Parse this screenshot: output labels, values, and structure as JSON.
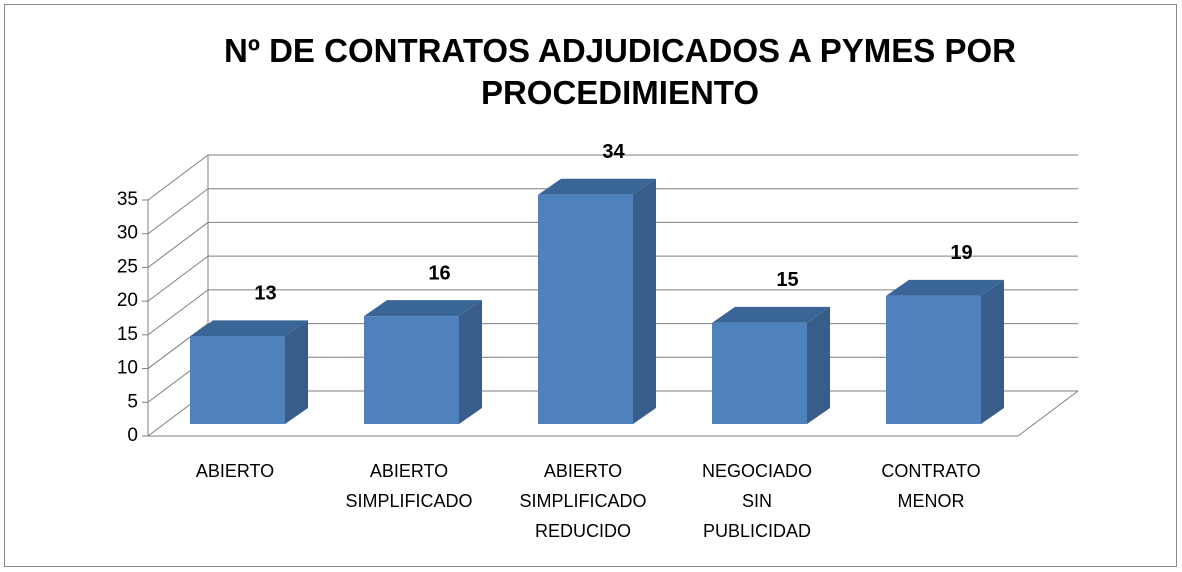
{
  "chart_data": {
    "type": "bar3d",
    "title": "Nº DE CONTRATOS ADJUDICADOS A PYMES POR PROCEDIMIENTO",
    "categories": [
      "ABIERTO",
      "ABIERTO SIMPLIFICADO",
      "ABIERTO SIMPLIFICADO REDUCIDO",
      "NEGOCIADO SIN PUBLICIDAD",
      "CONTRATO MENOR"
    ],
    "values": [
      13,
      16,
      34,
      15,
      19
    ],
    "color": "#4f81bd",
    "ylim": [
      0,
      35
    ],
    "yticks": [
      0,
      5,
      10,
      15,
      20,
      25,
      30,
      35
    ],
    "grid": true
  }
}
